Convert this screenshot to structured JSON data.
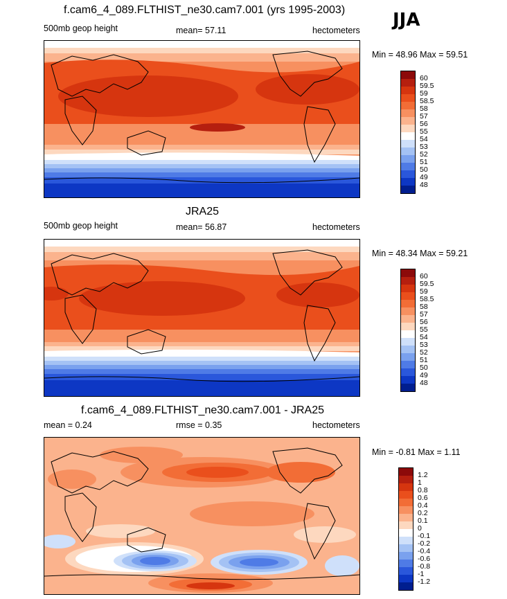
{
  "season": "JJA",
  "units": "hectometers",
  "panels": [
    {
      "title": "f.cam6_4_089.FLTHIST_ne30.cam7.001 (yrs 1995-2003)",
      "left_label": "500mb geop height",
      "center_label": "mean=  57.11",
      "units": "hectometers",
      "minmax": "Min =  48.96 Max =  59.51"
    },
    {
      "title": "JRA25",
      "left_label": "500mb geop height",
      "center_label": "mean=  56.87",
      "units": "hectometers",
      "minmax": "Min =  48.34 Max =  59.21"
    },
    {
      "title": "f.cam6_4_089.FLTHIST_ne30.cam7.001 - JRA25",
      "left_label": "mean =   0.24",
      "center_label": "rmse =   0.35",
      "units": "hectometers",
      "minmax": "Min =  -0.81 Max =   1.11"
    }
  ],
  "colorbar_abs": {
    "labels": [
      "60",
      "59.5",
      "59",
      "58.5",
      "58",
      "57",
      "56",
      "55",
      "54",
      "53",
      "52",
      "51",
      "50",
      "49",
      "48"
    ],
    "colors": [
      "#8c0a0a",
      "#b51f0f",
      "#d6350f",
      "#ea4f1c",
      "#f26d36",
      "#f79060",
      "#fbb38d",
      "#fdd8bf",
      "#ffffff",
      "#cfe0fa",
      "#a4c2f4",
      "#7aa1ee",
      "#4f7be6",
      "#2a57db",
      "#0d37c4",
      "#001e8f"
    ]
  },
  "colorbar_diff": {
    "labels": [
      "1.2",
      "1",
      "0.8",
      "0.6",
      "0.4",
      "0.2",
      "0.1",
      "0",
      "-0.1",
      "-0.2",
      "-0.4",
      "-0.6",
      "-0.8",
      "-1",
      "-1.2"
    ],
    "colors": [
      "#8c0a0a",
      "#b51f0f",
      "#d6350f",
      "#ea4f1c",
      "#f26d36",
      "#f79060",
      "#fbb38d",
      "#fdd8bf",
      "#ffffff",
      "#cfe0fa",
      "#a4c2f4",
      "#7aa1ee",
      "#4f7be6",
      "#2a57db",
      "#0d37c4",
      "#001e8f"
    ]
  }
}
